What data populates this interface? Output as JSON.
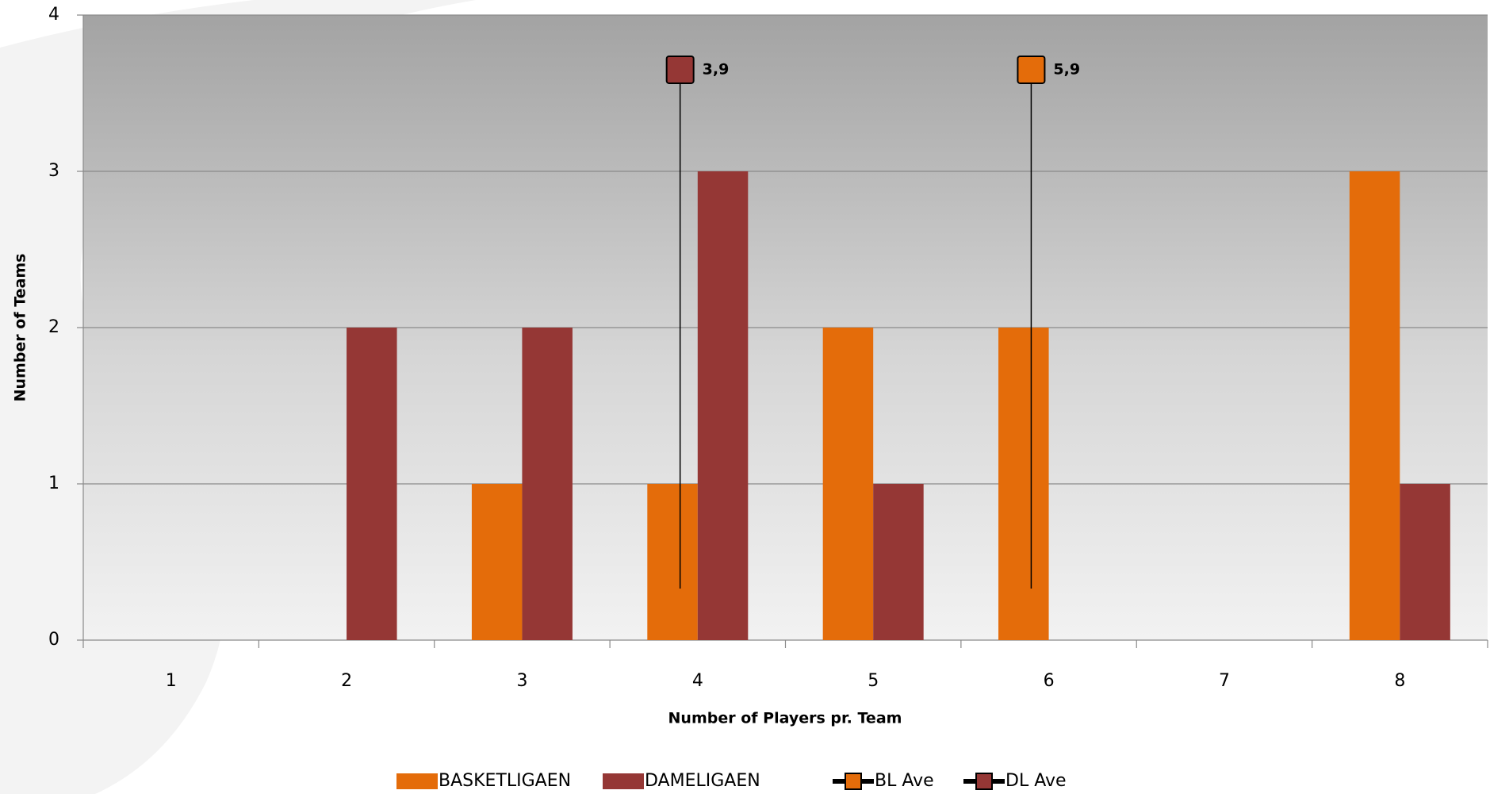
{
  "chart_data": {
    "type": "bar",
    "x_label": "Number of Players pr. Team",
    "y_label": "Number of Teams",
    "categories": [
      "1",
      "2",
      "3",
      "4",
      "5",
      "6",
      "7",
      "8"
    ],
    "series": [
      {
        "name": "BASKETLIGAEN",
        "color": "#e46c0a",
        "values": [
          0,
          0,
          1,
          1,
          2,
          2,
          0,
          3
        ]
      },
      {
        "name": "DAMELIGAEN",
        "color": "#953735",
        "values": [
          0,
          2,
          2,
          3,
          1,
          0,
          0,
          1
        ]
      },
      {
        "name": "BL Ave",
        "type": "marker",
        "color": "#e46c0a",
        "x": [
          5.9
        ],
        "y": [
          3.65
        ],
        "y_low": [
          0.33
        ],
        "value_labels": [
          "5,9"
        ]
      },
      {
        "name": "DL Ave",
        "type": "marker",
        "color": "#953735",
        "x": [
          3.9
        ],
        "y": [
          3.65
        ],
        "y_low": [
          0.33
        ],
        "value_labels": [
          "3,9"
        ]
      }
    ],
    "ylim": [
      0,
      4
    ],
    "yticks": [
      0,
      1,
      2,
      3,
      4
    ],
    "grid": true
  }
}
